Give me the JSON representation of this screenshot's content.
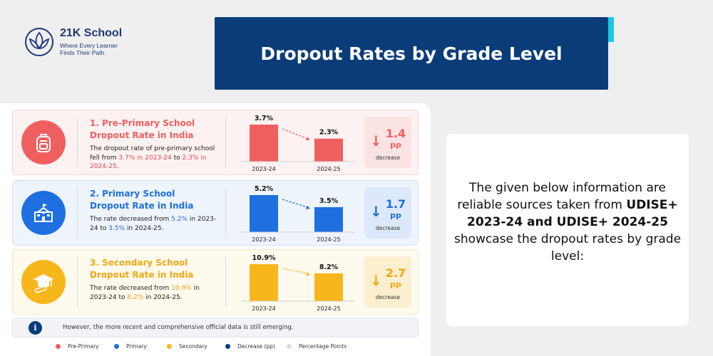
{
  "brand": {
    "name": "21K School",
    "tagline": "Where Every Learner Finds Their Path"
  },
  "title": "Dropout Rates by Grade Level",
  "colors": {
    "pre_primary": "#f05f5f",
    "primary": "#1e6fe0",
    "secondary": "#f7b71c",
    "navy": "#0a3c78",
    "accent": "#19c8e3"
  },
  "rows": [
    {
      "title": "1. Pre-Primary School Dropout Rate in India",
      "desc_a": "The dropout rate of pre-primary school fell from ",
      "desc_b": "3.7% in 2023-24",
      "desc_c": " to ",
      "desc_d": "2.3% in 2024-25",
      "desc_e": ".",
      "icon": "backpack-icon",
      "change": "1.4",
      "unit": "pp",
      "change_label": "decrease"
    },
    {
      "title": "2. Primary School Dropout Rate in India",
      "desc_a": "The rate decreased from ",
      "desc_b": "5.2%",
      "desc_c": " in 2023-24 to ",
      "desc_d": "3.5%",
      "desc_e": " in 2024-25.",
      "icon": "school-building-icon",
      "change": "1.7",
      "unit": "pp",
      "change_label": "decrease"
    },
    {
      "title": "3. Secondary School Dropout Rate in India",
      "desc_a": "The rate decreased from ",
      "desc_b": "10.9%",
      "desc_c": " in 2023-24 to ",
      "desc_d": "8.2%",
      "desc_e": " in 2024-25.",
      "icon": "graduation-cap-icon",
      "change": "2.7",
      "unit": "pp",
      "change_label": "decrease"
    }
  ],
  "chart_data": [
    {
      "type": "bar",
      "categories": [
        "2023-24",
        "2024-25"
      ],
      "values": [
        3.7,
        2.3
      ],
      "value_labels": [
        "3.7%",
        "2.3%"
      ],
      "color": "#f05f5f"
    },
    {
      "type": "bar",
      "categories": [
        "2023-24",
        "2024-25"
      ],
      "values": [
        5.2,
        3.5
      ],
      "value_labels": [
        "5.2%",
        "3.5%"
      ],
      "color": "#1e6fe0"
    },
    {
      "type": "bar",
      "categories": [
        "2023-24",
        "2024-25"
      ],
      "values": [
        10.9,
        8.2
      ],
      "value_labels": [
        "10.9%",
        "8.2%"
      ],
      "color": "#f7b71c"
    }
  ],
  "note": "However, the more recent and comprehensive official data is still emerging.",
  "legend": [
    {
      "label": "Pre-Primary",
      "color": "#f05f5f"
    },
    {
      "label": "Primary",
      "color": "#1e6fe0"
    },
    {
      "label": "Secondary",
      "color": "#f7b71c"
    },
    {
      "label": "Decrease (pp)",
      "color": "#0a3c78"
    },
    {
      "label": "Percentage Points",
      "color": "#dcdcdc"
    }
  ],
  "side_text": {
    "line1": "The given below information are reliable sources taken from ",
    "bold1": "UDISE+ 2023-24 and UDISE+ 2024-25",
    "line2": " showcase the dropout rates by grade level:"
  }
}
